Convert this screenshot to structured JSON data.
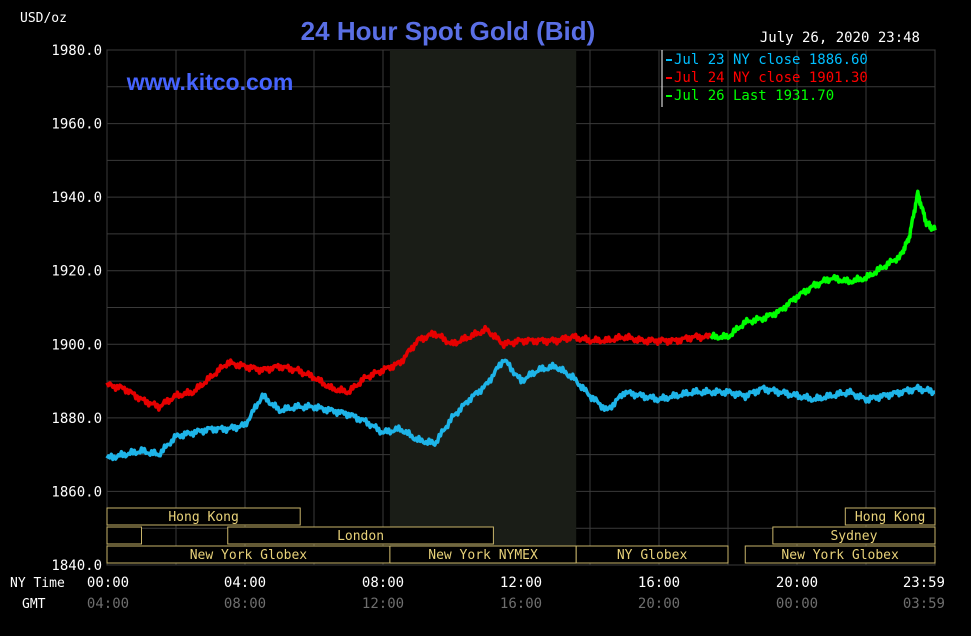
{
  "chart_data": {
    "type": "line",
    "title": "24 Hour Spot Gold (Bid)",
    "unit_label": "USD/oz",
    "date_label": "July 26, 2020 23:48",
    "watermark": "www.kitco.com",
    "y_ticks": [
      "1980.0",
      "1960.0",
      "1940.0",
      "1920.0",
      "1900.0",
      "1880.0",
      "1860.0",
      "1840.0"
    ],
    "ylim": [
      1840,
      1980
    ],
    "xlim": [
      0,
      24
    ],
    "ny_time_label": "NY Time",
    "gmt_label": "GMT",
    "ny_time_ticks": [
      "00:00",
      "04:00",
      "08:00",
      "12:00",
      "16:00",
      "20:00",
      "23:59"
    ],
    "gmt_ticks": [
      "04:00",
      "08:00",
      "12:00",
      "16:00",
      "20:00",
      "00:00",
      "03:59"
    ],
    "legend": [
      {
        "label": "Jul 23 NY close 1886.60",
        "color": "#00BFFF"
      },
      {
        "label": "Jul 24 NY close 1901.30",
        "color": "#FF0000"
      },
      {
        "label": "Jul 26 Last 1931.70",
        "color": "#00FF00"
      }
    ],
    "series": [
      {
        "color": "#1EB4E8",
        "x": [
          0,
          0.5,
          1,
          1.5,
          2,
          2.5,
          3,
          3.5,
          4,
          4.5,
          5,
          5.5,
          6,
          6.5,
          7,
          7.5,
          8,
          8.5,
          9,
          9.5,
          10,
          10.5,
          11,
          11.5,
          12,
          12.5,
          13,
          13.5,
          14,
          14.5,
          15,
          15.5,
          16,
          16.5,
          17,
          17.5,
          18,
          18.5,
          19,
          19.5,
          20,
          20.5,
          21,
          21.5,
          22,
          22.5,
          23,
          23.5,
          24
        ],
        "values": [
          1869,
          1870,
          1871,
          1870,
          1875,
          1876,
          1877,
          1877,
          1878,
          1886,
          1882,
          1883,
          1883,
          1882,
          1881,
          1879,
          1876,
          1877,
          1874,
          1873,
          1880,
          1885,
          1889,
          1896,
          1890,
          1893,
          1894,
          1891,
          1886,
          1882,
          1887,
          1886,
          1885,
          1886,
          1887,
          1887,
          1887,
          1886,
          1888,
          1887,
          1886,
          1885,
          1886,
          1887,
          1885,
          1886,
          1887,
          1888,
          1887
        ]
      },
      {
        "color": "#E60000",
        "x": [
          0,
          0.5,
          1,
          1.5,
          2,
          2.5,
          3,
          3.5,
          4,
          4.5,
          5,
          5.5,
          6,
          6.5,
          7,
          7.5,
          8,
          8.5,
          9,
          9.5,
          10,
          10.5,
          11,
          11.5,
          12,
          12.5,
          13,
          13.5,
          14,
          14.5,
          15,
          15.5,
          16,
          16.5,
          17,
          17.5
        ],
        "values": [
          1889,
          1888,
          1885,
          1883,
          1886,
          1887,
          1891,
          1895,
          1894,
          1893,
          1894,
          1893,
          1891,
          1888,
          1887,
          1891,
          1893,
          1895,
          1901,
          1903,
          1900,
          1902,
          1904,
          1900,
          1901,
          1901,
          1901,
          1902,
          1901,
          1901,
          1902,
          1901,
          1901,
          1901,
          1902,
          1902
        ]
      },
      {
        "color": "#00FF00",
        "x": [
          17.5,
          18,
          18.5,
          19,
          19.5,
          20,
          20.5,
          21,
          21.5,
          22,
          22.5,
          23,
          23.25,
          23.5,
          23.75,
          24
        ],
        "values": [
          1902,
          1902,
          1906,
          1907,
          1909,
          1913,
          1916,
          1918,
          1917,
          1918,
          1921,
          1924,
          1929,
          1941,
          1933,
          1931
        ]
      }
    ],
    "shaded_region": {
      "x_start": 8.2,
      "x_end": 13.6
    },
    "sessions": [
      {
        "label": "Hong Kong",
        "row": 0,
        "x_start": 0,
        "x_end": 5.6
      },
      {
        "label": "Hong Kong",
        "row": 0,
        "x_start": 21.4,
        "x_end": 24
      },
      {
        "label": "London",
        "row": 1,
        "x_start": 3.5,
        "x_end": 11.2
      },
      {
        "label": "Sydney",
        "row": 1,
        "x_start": 19.3,
        "x_end": 24
      },
      {
        "label": "",
        "row": 1,
        "x_start": 0,
        "x_end": 1
      },
      {
        "label": "New York Globex",
        "row": 2,
        "x_start": 0,
        "x_end": 8.2
      },
      {
        "label": "New York NYMEX",
        "row": 2,
        "x_start": 8.2,
        "x_end": 13.6
      },
      {
        "label": "NY Globex",
        "row": 2,
        "x_start": 13.6,
        "x_end": 18
      },
      {
        "label": "New York Globex",
        "row": 2,
        "x_start": 18.5,
        "x_end": 24
      }
    ]
  }
}
